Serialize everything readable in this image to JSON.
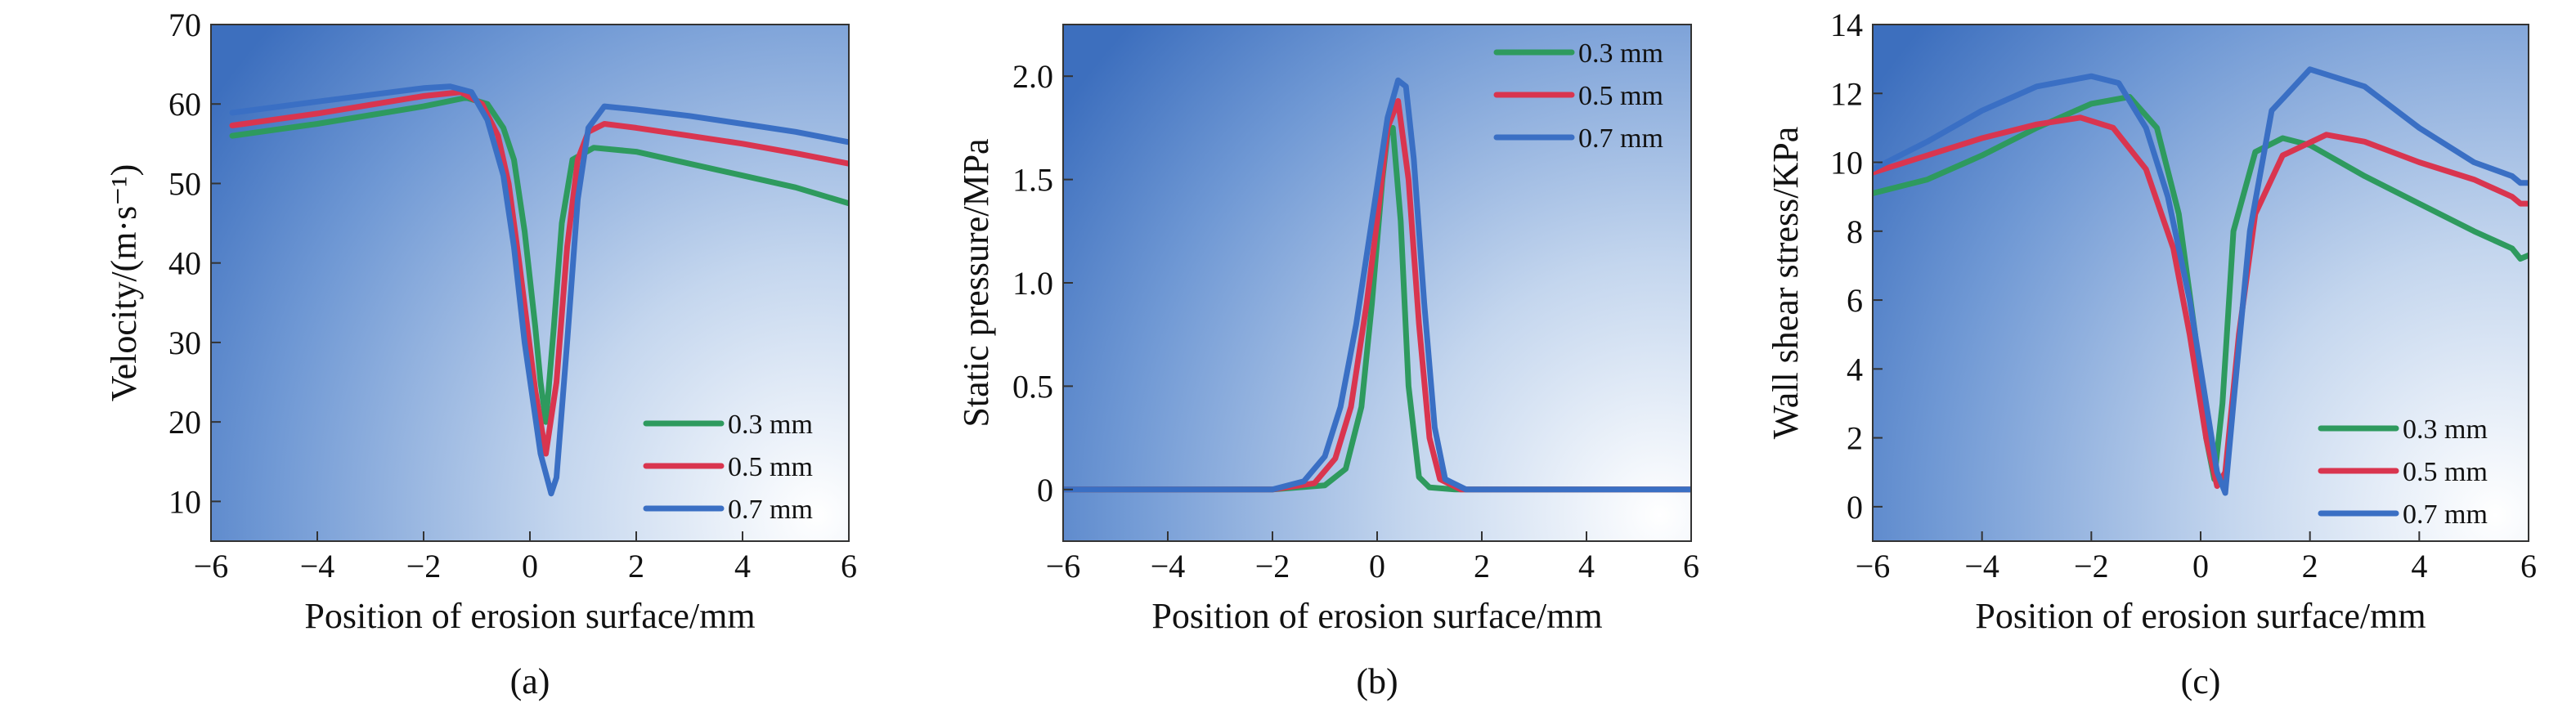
{
  "chart_data": [
    {
      "type": "line",
      "panel_label": "(a)",
      "xlabel": "Position of erosion surface/mm",
      "ylabel": "Velocity/(m·s⁻¹)",
      "xlim": [
        -6,
        6
      ],
      "ylim": [
        5,
        70
      ],
      "xticks": [
        -6,
        -4,
        -2,
        0,
        2,
        4,
        6
      ],
      "yticks": [
        10,
        20,
        30,
        40,
        50,
        60,
        70
      ],
      "xtick_labels": [
        "−6",
        "−4",
        "−2",
        "0",
        "2",
        "4",
        "6"
      ],
      "ytick_labels": [
        "10",
        "20",
        "30",
        "40",
        "50",
        "60",
        "70"
      ],
      "legend_position": "bottom-right",
      "background": "blue gradient",
      "series": [
        {
          "name": "0.3 mm",
          "color": "#2e9a5e",
          "x": [
            -5.6,
            -4,
            -2,
            -1.2,
            -0.8,
            -0.5,
            -0.3,
            -0.1,
            0.1,
            0.2,
            0.3,
            0.45,
            0.6,
            0.8,
            1.2,
            2,
            3,
            4,
            5,
            6
          ],
          "y": [
            56,
            57.5,
            59.7,
            60.8,
            60,
            57,
            53,
            44,
            32,
            25,
            20,
            32,
            45,
            53,
            54.5,
            54,
            52.5,
            51,
            49.5,
            47.5
          ]
        },
        {
          "name": "0.5 mm",
          "color": "#d9354f",
          "x": [
            -5.6,
            -4,
            -2,
            -1.3,
            -0.9,
            -0.6,
            -0.4,
            -0.2,
            0.1,
            0.3,
            0.5,
            0.7,
            0.9,
            1.1,
            1.4,
            2,
            3,
            4,
            5,
            6
          ],
          "y": [
            57.3,
            58.8,
            61,
            61.5,
            60,
            56,
            50,
            40,
            24,
            16,
            25,
            42,
            53,
            56.5,
            57.5,
            57,
            56,
            55,
            53.8,
            52.5
          ]
        },
        {
          "name": "0.7 mm",
          "color": "#3a6fc4",
          "x": [
            -5.6,
            -4,
            -2,
            -1.5,
            -1.1,
            -0.8,
            -0.5,
            -0.3,
            -0.1,
            0.2,
            0.4,
            0.5,
            0.7,
            0.9,
            1.1,
            1.4,
            2,
            3,
            4,
            5,
            6
          ],
          "y": [
            58.9,
            60.3,
            62,
            62.2,
            61.5,
            58,
            51,
            42,
            30,
            16,
            11,
            13,
            30,
            48,
            57,
            59.7,
            59.3,
            58.5,
            57.5,
            56.5,
            55.2
          ]
        }
      ]
    },
    {
      "type": "line",
      "panel_label": "(b)",
      "xlabel": "Position of erosion surface/mm",
      "ylabel": "Static pressure/MPa",
      "xlim": [
        -6,
        6
      ],
      "ylim": [
        -0.25,
        2.25
      ],
      "xticks": [
        -6,
        -4,
        -2,
        0,
        2,
        4,
        6
      ],
      "yticks": [
        0,
        0.5,
        1.0,
        1.5,
        2.0
      ],
      "xtick_labels": [
        "−6",
        "−4",
        "−2",
        "0",
        "2",
        "4",
        "6"
      ],
      "ytick_labels": [
        "0",
        "0.5",
        "1.0",
        "1.5",
        "2.0"
      ],
      "legend_position": "top-right",
      "background": "blue gradient",
      "series": [
        {
          "name": "0.3 mm",
          "color": "#2e9a5e",
          "x": [
            -6,
            -2,
            -1,
            -0.6,
            -0.3,
            -0.1,
            0.1,
            0.2,
            0.3,
            0.45,
            0.6,
            0.8,
            1.0,
            1.5,
            6
          ],
          "y": [
            0,
            0,
            0.02,
            0.1,
            0.4,
            0.9,
            1.5,
            1.72,
            1.75,
            1.3,
            0.5,
            0.06,
            0.01,
            0,
            0
          ]
        },
        {
          "name": "0.5 mm",
          "color": "#d9354f",
          "x": [
            -6,
            -2,
            -1.2,
            -0.8,
            -0.5,
            -0.2,
            0,
            0.2,
            0.4,
            0.6,
            0.8,
            1.0,
            1.2,
            1.6,
            6
          ],
          "y": [
            0,
            0,
            0.03,
            0.15,
            0.4,
            0.9,
            1.3,
            1.75,
            1.88,
            1.5,
            0.8,
            0.25,
            0.05,
            0,
            0
          ]
        },
        {
          "name": "0.7 mm",
          "color": "#3a6fc4",
          "x": [
            -6,
            -2,
            -1.4,
            -1,
            -0.7,
            -0.4,
            -0.1,
            0.2,
            0.4,
            0.55,
            0.7,
            0.9,
            1.1,
            1.3,
            1.7,
            6
          ],
          "y": [
            0,
            0,
            0.04,
            0.16,
            0.4,
            0.8,
            1.3,
            1.8,
            1.98,
            1.95,
            1.6,
            0.9,
            0.3,
            0.05,
            0,
            0
          ]
        }
      ]
    },
    {
      "type": "line",
      "panel_label": "(c)",
      "xlabel": "Position of erosion surface/mm",
      "ylabel": "Wall shear stress/KPa",
      "xlim": [
        -6,
        6
      ],
      "ylim": [
        -1,
        14
      ],
      "xticks": [
        -6,
        -4,
        -2,
        0,
        2,
        4,
        6
      ],
      "yticks": [
        0,
        2,
        4,
        6,
        8,
        10,
        12,
        14
      ],
      "xtick_labels": [
        "−6",
        "−4",
        "−2",
        "0",
        "2",
        "4",
        "6"
      ],
      "ytick_labels": [
        "0",
        "2",
        "4",
        "6",
        "8",
        "10",
        "12",
        "14"
      ],
      "legend_position": "bottom-right",
      "background": "blue gradient",
      "series": [
        {
          "name": "0.3 mm",
          "color": "#2e9a5e",
          "x": [
            -6,
            -5,
            -4,
            -3,
            -2,
            -1.3,
            -0.8,
            -0.4,
            -0.1,
            0.1,
            0.25,
            0.4,
            0.6,
            1.0,
            1.5,
            2,
            3,
            4,
            5,
            5.7,
            5.85,
            6
          ],
          "y": [
            9.1,
            9.5,
            10.2,
            11.0,
            11.7,
            11.9,
            11.0,
            8.5,
            5,
            2,
            0.8,
            3,
            8,
            10.3,
            10.7,
            10.5,
            9.6,
            8.8,
            8.0,
            7.5,
            7.2,
            7.3
          ]
        },
        {
          "name": "0.5 mm",
          "color": "#d9354f",
          "x": [
            -6,
            -5,
            -4,
            -3,
            -2.2,
            -1.6,
            -1,
            -0.5,
            -0.2,
            0.1,
            0.3,
            0.45,
            0.7,
            1.0,
            1.5,
            2.3,
            3,
            4,
            5,
            5.7,
            5.85,
            6
          ],
          "y": [
            9.7,
            10.2,
            10.7,
            11.1,
            11.3,
            11.0,
            9.8,
            7.5,
            5,
            2,
            0.6,
            1,
            5,
            8.5,
            10.2,
            10.8,
            10.6,
            10.0,
            9.5,
            9.0,
            8.8,
            8.8
          ]
        },
        {
          "name": "0.7 mm",
          "color": "#3a6fc4",
          "x": [
            -6,
            -5,
            -4,
            -3,
            -2,
            -1.5,
            -1,
            -0.6,
            -0.2,
            0.1,
            0.3,
            0.45,
            0.6,
            0.9,
            1.3,
            2,
            3,
            4,
            5,
            5.7,
            5.85,
            6
          ],
          "y": [
            9.8,
            10.6,
            11.5,
            12.2,
            12.5,
            12.3,
            11.0,
            9,
            6,
            3,
            1,
            0.4,
            3,
            8,
            11.5,
            12.7,
            12.2,
            11.0,
            10.0,
            9.6,
            9.4,
            9.4
          ]
        }
      ]
    }
  ]
}
